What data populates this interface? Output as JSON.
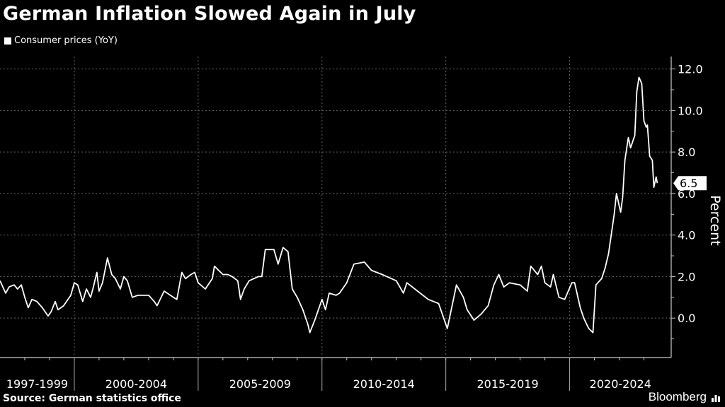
{
  "title": "German Inflation Slowed Again in July",
  "source": "Source: German statistics office",
  "logo": "Bloomberg",
  "colors": {
    "background": "#000000",
    "line": "#ffffff",
    "grid": "#555555"
  },
  "chart_data": {
    "type": "line",
    "title": "German Inflation Slowed Again in July",
    "ylabel": "Percent",
    "xlabel": "",
    "xlim": [
      1997,
      2024.1
    ],
    "ylim": [
      -1.9,
      12.6
    ],
    "yticks": [
      0,
      2,
      4,
      6,
      8,
      10,
      12
    ],
    "ytick_labels": [
      "0.0",
      "2.0",
      "4.0",
      "6.0",
      "8.0",
      "10.0",
      "12.0"
    ],
    "x_categories": [
      {
        "label": "1997-1999",
        "start": 1997,
        "end": 2000
      },
      {
        "label": "2000-2004",
        "start": 2000,
        "end": 2005
      },
      {
        "label": "2005-2009",
        "start": 2005,
        "end": 2010
      },
      {
        "label": "2010-2014",
        "start": 2010,
        "end": 2015
      },
      {
        "label": "2015-2019",
        "start": 2015,
        "end": 2020
      },
      {
        "label": "2020-2024",
        "start": 2020,
        "end": 2024.1
      }
    ],
    "grid": true,
    "legend": {
      "position": "top-left",
      "entries": [
        "Consumer prices (YoY)"
      ]
    },
    "last_value_label": "6.5",
    "series": [
      {
        "name": "Consumer prices (YoY)",
        "points": [
          [
            1997.0,
            1.8
          ],
          [
            1997.23,
            1.2
          ],
          [
            1997.37,
            1.5
          ],
          [
            1997.57,
            1.6
          ],
          [
            1997.71,
            1.4
          ],
          [
            1997.86,
            1.6
          ],
          [
            1998.0,
            1.0
          ],
          [
            1998.14,
            0.5
          ],
          [
            1998.29,
            0.9
          ],
          [
            1998.49,
            0.8
          ],
          [
            1998.71,
            0.5
          ],
          [
            1998.94,
            0.1
          ],
          [
            1999.06,
            0.3
          ],
          [
            1999.23,
            0.8
          ],
          [
            1999.34,
            0.4
          ],
          [
            1999.57,
            0.6
          ],
          [
            1999.86,
            1.1
          ],
          [
            2000.0,
            1.7
          ],
          [
            2000.14,
            1.6
          ],
          [
            2000.34,
            0.8
          ],
          [
            2000.49,
            1.4
          ],
          [
            2000.66,
            1.0
          ],
          [
            2000.77,
            1.5
          ],
          [
            2000.91,
            2.2
          ],
          [
            2001.0,
            1.3
          ],
          [
            2001.14,
            1.7
          ],
          [
            2001.34,
            2.9
          ],
          [
            2001.51,
            2.1
          ],
          [
            2001.66,
            1.9
          ],
          [
            2001.86,
            1.4
          ],
          [
            2002.0,
            2.0
          ],
          [
            2002.14,
            1.8
          ],
          [
            2002.34,
            1.0
          ],
          [
            2002.57,
            1.1
          ],
          [
            2003.0,
            1.1
          ],
          [
            2003.23,
            0.8
          ],
          [
            2003.34,
            0.6
          ],
          [
            2003.63,
            1.3
          ],
          [
            2004.0,
            1.0
          ],
          [
            2004.14,
            0.9
          ],
          [
            2004.34,
            2.2
          ],
          [
            2004.49,
            1.9
          ],
          [
            2004.71,
            2.1
          ],
          [
            2004.86,
            2.2
          ],
          [
            2005.0,
            1.7
          ],
          [
            2005.29,
            1.4
          ],
          [
            2005.57,
            1.9
          ],
          [
            2005.66,
            2.5
          ],
          [
            2006.0,
            2.1
          ],
          [
            2006.2,
            2.1
          ],
          [
            2006.37,
            2.0
          ],
          [
            2006.6,
            1.8
          ],
          [
            2006.71,
            0.9
          ],
          [
            2006.86,
            1.4
          ],
          [
            2007.06,
            1.8
          ],
          [
            2007.43,
            2.0
          ],
          [
            2007.57,
            2.0
          ],
          [
            2007.71,
            3.3
          ],
          [
            2007.86,
            3.3
          ],
          [
            2008.06,
            3.3
          ],
          [
            2008.23,
            2.6
          ],
          [
            2008.43,
            3.4
          ],
          [
            2008.63,
            3.2
          ],
          [
            2008.8,
            1.4
          ],
          [
            2009.0,
            1.0
          ],
          [
            2009.23,
            0.4
          ],
          [
            2009.43,
            -0.3
          ],
          [
            2009.51,
            -0.7
          ],
          [
            2009.71,
            -0.1
          ],
          [
            2010.0,
            0.9
          ],
          [
            2010.14,
            0.4
          ],
          [
            2010.29,
            1.2
          ],
          [
            2010.57,
            1.1
          ],
          [
            2010.71,
            1.2
          ],
          [
            2011.0,
            1.7
          ],
          [
            2011.29,
            2.6
          ],
          [
            2011.71,
            2.7
          ],
          [
            2012.0,
            2.3
          ],
          [
            2012.43,
            2.1
          ],
          [
            2013.0,
            1.8
          ],
          [
            2013.29,
            1.2
          ],
          [
            2013.43,
            1.7
          ],
          [
            2013.86,
            1.3
          ],
          [
            2014.29,
            0.9
          ],
          [
            2014.71,
            0.7
          ],
          [
            2015.06,
            -0.5
          ],
          [
            2015.43,
            1.6
          ],
          [
            2015.71,
            1.0
          ],
          [
            2015.86,
            0.4
          ],
          [
            2016.14,
            -0.1
          ],
          [
            2016.43,
            0.2
          ],
          [
            2016.71,
            0.6
          ],
          [
            2016.94,
            1.6
          ],
          [
            2017.14,
            2.1
          ],
          [
            2017.34,
            1.5
          ],
          [
            2017.57,
            1.7
          ],
          [
            2018.0,
            1.6
          ],
          [
            2018.29,
            1.3
          ],
          [
            2018.43,
            2.5
          ],
          [
            2018.71,
            2.1
          ],
          [
            2018.86,
            2.5
          ],
          [
            2019.0,
            1.7
          ],
          [
            2019.23,
            1.5
          ],
          [
            2019.34,
            2.1
          ],
          [
            2019.57,
            1.0
          ],
          [
            2019.8,
            0.9
          ],
          [
            2020.09,
            1.7
          ],
          [
            2020.2,
            1.7
          ],
          [
            2020.43,
            0.5
          ],
          [
            2020.57,
            0.0
          ],
          [
            2020.77,
            -0.5
          ],
          [
            2020.94,
            -0.7
          ],
          [
            2021.06,
            1.6
          ],
          [
            2021.29,
            1.9
          ],
          [
            2021.43,
            2.4
          ],
          [
            2021.57,
            3.1
          ],
          [
            2021.8,
            5.0
          ],
          [
            2021.89,
            6.0
          ],
          [
            2022.06,
            5.1
          ],
          [
            2022.14,
            5.8
          ],
          [
            2022.23,
            7.6
          ],
          [
            2022.37,
            8.7
          ],
          [
            2022.46,
            8.2
          ],
          [
            2022.63,
            8.8
          ],
          [
            2022.71,
            10.9
          ],
          [
            2022.8,
            11.6
          ],
          [
            2022.91,
            11.3
          ],
          [
            2023.0,
            9.5
          ],
          [
            2023.09,
            9.2
          ],
          [
            2023.14,
            9.3
          ],
          [
            2023.23,
            7.8
          ],
          [
            2023.34,
            7.6
          ],
          [
            2023.4,
            6.3
          ],
          [
            2023.49,
            6.8
          ],
          [
            2023.54,
            6.5
          ]
        ]
      }
    ]
  }
}
